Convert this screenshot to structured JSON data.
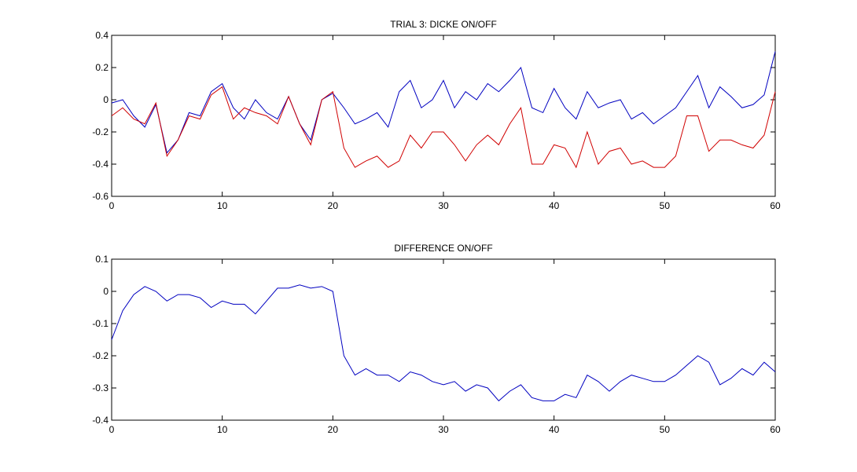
{
  "chart_data": [
    {
      "type": "line",
      "title": "TRIAL 3: DICKE ON/OFF",
      "x": [
        0,
        1,
        2,
        3,
        4,
        5,
        6,
        7,
        8,
        9,
        10,
        11,
        12,
        13,
        14,
        15,
        16,
        17,
        18,
        19,
        20,
        21,
        22,
        23,
        24,
        25,
        26,
        27,
        28,
        29,
        30,
        31,
        32,
        33,
        34,
        35,
        36,
        37,
        38,
        39,
        40,
        41,
        42,
        43,
        44,
        45,
        46,
        47,
        48,
        49,
        50,
        51,
        52,
        53,
        54,
        55,
        56,
        57,
        58,
        59,
        60
      ],
      "series": [
        {
          "color": "#0000c0",
          "values": [
            -0.02,
            0.0,
            -0.1,
            -0.17,
            -0.03,
            -0.33,
            -0.25,
            -0.08,
            -0.1,
            0.05,
            0.1,
            -0.05,
            -0.12,
            0.0,
            -0.08,
            -0.12,
            0.02,
            -0.15,
            -0.25,
            0.0,
            0.04,
            -0.05,
            -0.15,
            -0.12,
            -0.08,
            -0.17,
            0.05,
            0.12,
            -0.05,
            0.0,
            0.12,
            -0.05,
            0.05,
            0.0,
            0.1,
            0.05,
            0.12,
            0.2,
            -0.05,
            -0.08,
            0.07,
            -0.05,
            -0.12,
            0.05,
            -0.05,
            -0.02,
            0.0,
            -0.12,
            -0.08,
            -0.15,
            -0.1,
            -0.05,
            0.05,
            0.15,
            -0.05,
            0.08,
            0.02,
            -0.05,
            -0.03,
            0.03,
            0.3
          ]
        },
        {
          "color": "#d00000",
          "values": [
            -0.1,
            -0.05,
            -0.12,
            -0.15,
            -0.02,
            -0.35,
            -0.25,
            -0.1,
            -0.12,
            0.03,
            0.08,
            -0.12,
            -0.05,
            -0.08,
            -0.1,
            -0.15,
            0.02,
            -0.15,
            -0.28,
            0.0,
            0.05,
            -0.3,
            -0.42,
            -0.38,
            -0.35,
            -0.42,
            -0.38,
            -0.22,
            -0.3,
            -0.2,
            -0.2,
            -0.28,
            -0.38,
            -0.28,
            -0.22,
            -0.28,
            -0.15,
            -0.05,
            -0.4,
            -0.4,
            -0.28,
            -0.3,
            -0.42,
            -0.2,
            -0.4,
            -0.32,
            -0.3,
            -0.4,
            -0.38,
            -0.42,
            -0.42,
            -0.35,
            -0.1,
            -0.1,
            -0.32,
            -0.25,
            -0.25,
            -0.28,
            -0.3,
            -0.22,
            0.05
          ]
        }
      ],
      "xlim": [
        0,
        60
      ],
      "xticks": [
        0,
        10,
        20,
        30,
        40,
        50,
        60
      ],
      "ylim": [
        -0.6,
        0.4
      ],
      "yticks": [
        -0.6,
        -0.4,
        -0.2,
        0,
        0.2,
        0.4
      ]
    },
    {
      "type": "line",
      "title": "DIFFERENCE ON/OFF",
      "x": [
        0,
        1,
        2,
        3,
        4,
        5,
        6,
        7,
        8,
        9,
        10,
        11,
        12,
        13,
        14,
        15,
        16,
        17,
        18,
        19,
        20,
        21,
        22,
        23,
        24,
        25,
        26,
        27,
        28,
        29,
        30,
        31,
        32,
        33,
        34,
        35,
        36,
        37,
        38,
        39,
        40,
        41,
        42,
        43,
        44,
        45,
        46,
        47,
        48,
        49,
        50,
        51,
        52,
        53,
        54,
        55,
        56,
        57,
        58,
        59,
        60
      ],
      "series": [
        {
          "color": "#0000c0",
          "values": [
            -0.15,
            -0.06,
            -0.01,
            0.015,
            0.0,
            -0.03,
            -0.01,
            -0.01,
            -0.02,
            -0.05,
            -0.03,
            -0.04,
            -0.04,
            -0.07,
            -0.03,
            0.01,
            0.01,
            0.02,
            0.01,
            0.015,
            0.0,
            -0.2,
            -0.26,
            -0.24,
            -0.26,
            -0.26,
            -0.28,
            -0.25,
            -0.26,
            -0.28,
            -0.29,
            -0.28,
            -0.31,
            -0.29,
            -0.3,
            -0.34,
            -0.31,
            -0.29,
            -0.33,
            -0.34,
            -0.34,
            -0.32,
            -0.33,
            -0.26,
            -0.28,
            -0.31,
            -0.28,
            -0.26,
            -0.27,
            -0.28,
            -0.28,
            -0.26,
            -0.23,
            -0.2,
            -0.22,
            -0.29,
            -0.27,
            -0.24,
            -0.26,
            -0.22,
            -0.25
          ]
        }
      ],
      "xlim": [
        0,
        60
      ],
      "xticks": [
        0,
        10,
        20,
        30,
        40,
        50,
        60
      ],
      "ylim": [
        -0.4,
        0.1
      ],
      "yticks": [
        -0.4,
        -0.3,
        -0.2,
        -0.1,
        0,
        0.1
      ]
    }
  ]
}
